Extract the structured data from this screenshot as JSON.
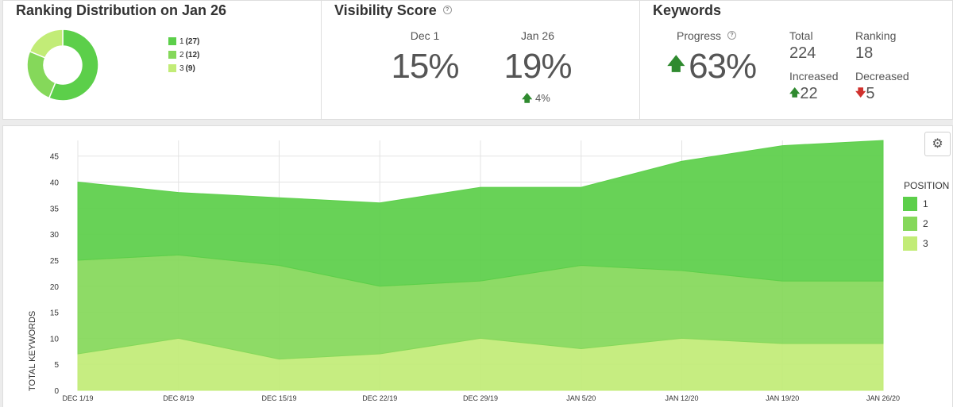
{
  "ranking": {
    "title": "Ranking Distribution on Jan 26",
    "legend": [
      {
        "label": "1",
        "count": "(27)",
        "color": "#5ccf4a",
        "value": 27
      },
      {
        "label": "2",
        "count": "(12)",
        "color": "#85d85a",
        "value": 12
      },
      {
        "label": "3",
        "count": "(9)",
        "color": "#c2ec77",
        "value": 9
      }
    ]
  },
  "visibility": {
    "title": "Visibility Score",
    "help_icon": "question-circle-icon",
    "prev_label": "Dec 1",
    "prev_value": "15%",
    "curr_label": "Jan 26",
    "curr_value": "19%",
    "change": "4%"
  },
  "keywords": {
    "title": "Keywords",
    "progress_label": "Progress",
    "progress_value": "63%",
    "total_label": "Total",
    "total_value": "224",
    "ranking_label": "Ranking",
    "ranking_value": "18",
    "increased_label": "Increased",
    "increased_value": "22",
    "decreased_label": "Decreased",
    "decreased_value": "5"
  },
  "settings_icon": "gear-icon",
  "chart_data": {
    "type": "area",
    "stacked": true,
    "ylabel": "TOTAL KEYWORDS",
    "ylim": [
      0,
      48
    ],
    "yticks": [
      0,
      5,
      10,
      15,
      20,
      25,
      30,
      35,
      40,
      45
    ],
    "grid": true,
    "legend_title": "POSITION",
    "legend_position": "right",
    "categories": [
      "DEC 1/19",
      "DEC 8/19",
      "DEC 15/19",
      "DEC 22/19",
      "DEC 29/19",
      "JAN 5/20",
      "JAN 12/20",
      "JAN 19/20",
      "JAN 26/20"
    ],
    "series": [
      {
        "name": "3",
        "color": "#c2ec77",
        "values": [
          7,
          10,
          6,
          7,
          10,
          8,
          10,
          9,
          9
        ]
      },
      {
        "name": "2",
        "color": "#85d85a",
        "values": [
          18,
          16,
          18,
          13,
          11,
          16,
          13,
          12,
          12
        ]
      },
      {
        "name": "1",
        "color": "#5ccf4a",
        "values": [
          15,
          12,
          13,
          16,
          18,
          15,
          21,
          26,
          27
        ]
      }
    ]
  }
}
